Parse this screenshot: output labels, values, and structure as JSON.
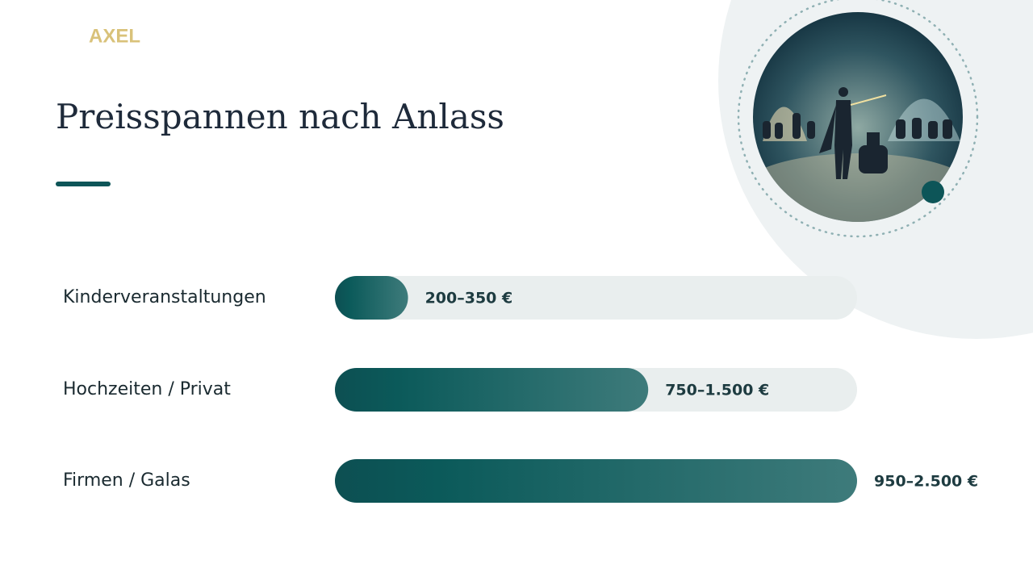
{
  "brand": "AXEL",
  "chart_data": {
    "type": "hbar",
    "title": "Preisspannen nach Anlass",
    "categories": [
      "Kinderveranstaltungen",
      "Hochzeiten / Privat",
      "Firmen / Galas"
    ],
    "values": [
      350,
      1500,
      2500
    ],
    "value_labels": [
      "200–350 €",
      "750–1.500 €",
      "950–2.500 €"
    ],
    "xlim": [
      0,
      2500
    ],
    "color": "#0d5558"
  }
}
